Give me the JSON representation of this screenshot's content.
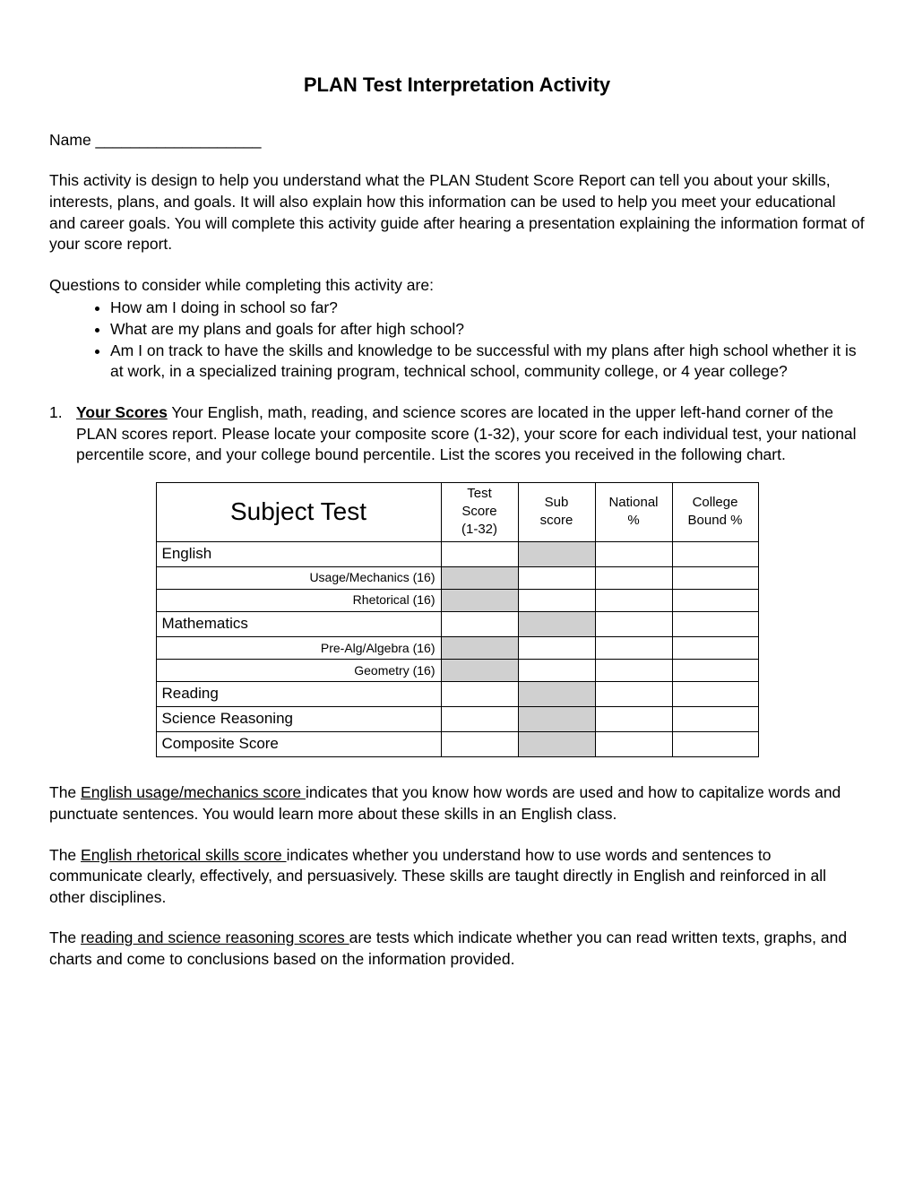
{
  "title": "PLAN Test Interpretation Activity",
  "name_label": "Name ___________________",
  "intro": "This activity is design to help you understand what the PLAN Student Score Report can tell you about your skills, interests, plans, and goals.  It will also explain how this information can be used to help you meet your educational and career goals.  You will complete this activity guide after hearing a presentation explaining the information format of your score report.",
  "questions_intro": "Questions to consider while completing this activity are:",
  "questions": [
    "How am I doing in school so far?",
    "What are my plans and goals for after high school?",
    "Am I on track to have the skills and knowledge to be successful with my plans after high school whether it is at work, in a specialized training program, technical school, community college, or 4 year college?"
  ],
  "section1": {
    "num": "1.",
    "heading": "Your Scores",
    "text": "  Your English, math, reading, and science scores are located in the upper left-hand corner of the PLAN scores report.  Please locate your composite score (1-32), your score for each individual test, your national percentile score, and your college bound percentile.  List the scores you received in the following chart."
  },
  "table": {
    "headers": {
      "subject": "Subject Test",
      "test_score": "Test\nScore\n(1-32)",
      "sub_score": "Sub\nscore",
      "national": "National\n%",
      "college": "College\nBound %"
    },
    "rows": [
      {
        "label": "English",
        "type": "main",
        "gray_cols": [
          2
        ]
      },
      {
        "label": "Usage/Mechanics (16)",
        "type": "sub",
        "gray_cols": [
          1
        ]
      },
      {
        "label": "Rhetorical (16)",
        "type": "sub",
        "gray_cols": [
          1
        ]
      },
      {
        "label": "Mathematics",
        "type": "main",
        "gray_cols": [
          2
        ]
      },
      {
        "label": "Pre-Alg/Algebra (16)",
        "type": "sub",
        "gray_cols": [
          1
        ]
      },
      {
        "label": "Geometry (16)",
        "type": "sub",
        "gray_cols": [
          1
        ]
      },
      {
        "label": "Reading",
        "type": "main",
        "gray_cols": [
          2
        ]
      },
      {
        "label": "Science Reasoning",
        "type": "main",
        "gray_cols": [
          2
        ]
      },
      {
        "label": "Composite Score",
        "type": "main",
        "gray_cols": [
          2
        ]
      }
    ],
    "col_widths": {
      "subject": 318,
      "test_score": 86,
      "sub_score": 86,
      "national": 86,
      "college": 96
    },
    "gray_color": "#d0d0d0",
    "border_color": "#000000"
  },
  "desc1": {
    "pre": "The ",
    "underline": "English usage/mechanics score ",
    "post": "indicates that you know how words are used and how to capitalize words and punctuate sentences.  You would learn more about these skills in an English class."
  },
  "desc2": {
    "pre": "The ",
    "underline": "English rhetorical skills score ",
    "post": "indicates whether you understand how to use words and sentences to communicate clearly, effectively, and persuasively.  These skills are taught directly in English and reinforced in all other disciplines."
  },
  "desc3": {
    "pre": "The ",
    "underline": "reading and science reasoning scores ",
    "post": "are tests which indicate whether you can read written texts, graphs, and charts and come to conclusions based on the information provided."
  }
}
